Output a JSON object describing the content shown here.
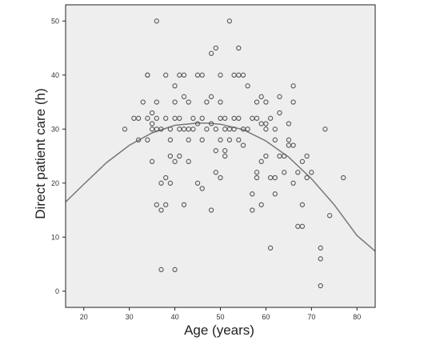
{
  "chart_data": {
    "type": "scatter",
    "title": "",
    "xlabel": "Age (years)",
    "ylabel": "Direct patient care (h)",
    "xlim": [
      16,
      84
    ],
    "ylim": [
      -3,
      53
    ],
    "x_ticks": [
      20,
      30,
      40,
      50,
      60,
      70,
      80
    ],
    "y_ticks": [
      0,
      10,
      20,
      30,
      40,
      50
    ],
    "grid": false,
    "legend": "none",
    "colors": {
      "plot_background": "#eeeeee",
      "marker_stroke": "#555555",
      "fit_line": "#777777",
      "axis": "#222222"
    },
    "fit_curve": {
      "type": "quadratic",
      "x": [
        16,
        20,
        25,
        30,
        35,
        40,
        45,
        47,
        50,
        55,
        60,
        65,
        70,
        75,
        80,
        84
      ],
      "y": [
        16.5,
        19.8,
        23.8,
        27.0,
        29.3,
        30.7,
        31.1,
        31.1,
        30.9,
        29.9,
        27.8,
        24.8,
        20.8,
        16.0,
        10.3,
        7.4
      ]
    },
    "points": [
      [
        29,
        30
      ],
      [
        31,
        32
      ],
      [
        32,
        28
      ],
      [
        32,
        32
      ],
      [
        33,
        35
      ],
      [
        34,
        40
      ],
      [
        34,
        40
      ],
      [
        34,
        32
      ],
      [
        34,
        28
      ],
      [
        35,
        33
      ],
      [
        35,
        31
      ],
      [
        35,
        30
      ],
      [
        35,
        24
      ],
      [
        36,
        50
      ],
      [
        36,
        16
      ],
      [
        36,
        30
      ],
      [
        36,
        35
      ],
      [
        36,
        32
      ],
      [
        37,
        15
      ],
      [
        37,
        4
      ],
      [
        37,
        30
      ],
      [
        37,
        20
      ],
      [
        38,
        16
      ],
      [
        38,
        21
      ],
      [
        38,
        40
      ],
      [
        38,
        32
      ],
      [
        39,
        20
      ],
      [
        39,
        25
      ],
      [
        39,
        30
      ],
      [
        39,
        28
      ],
      [
        40,
        4
      ],
      [
        40,
        38
      ],
      [
        40,
        35
      ],
      [
        40,
        32
      ],
      [
        40,
        24
      ],
      [
        41,
        30
      ],
      [
        41,
        40
      ],
      [
        41,
        32
      ],
      [
        41,
        25
      ],
      [
        42,
        40
      ],
      [
        42,
        36
      ],
      [
        42,
        30
      ],
      [
        42,
        16
      ],
      [
        43,
        35
      ],
      [
        43,
        24
      ],
      [
        43,
        30
      ],
      [
        43,
        28
      ],
      [
        44,
        32
      ],
      [
        44,
        30
      ],
      [
        45,
        20
      ],
      [
        45,
        40
      ],
      [
        45,
        31
      ],
      [
        46,
        19
      ],
      [
        46,
        40
      ],
      [
        46,
        32
      ],
      [
        46,
        28
      ],
      [
        47,
        35
      ],
      [
        47,
        30
      ],
      [
        48,
        44
      ],
      [
        48,
        15
      ],
      [
        48,
        36
      ],
      [
        48,
        31
      ],
      [
        49,
        22
      ],
      [
        49,
        30
      ],
      [
        49,
        45
      ],
      [
        49,
        26
      ],
      [
        50,
        21
      ],
      [
        50,
        40
      ],
      [
        50,
        35
      ],
      [
        50,
        32
      ],
      [
        50,
        28
      ],
      [
        51,
        26
      ],
      [
        51,
        25
      ],
      [
        51,
        30
      ],
      [
        51,
        32
      ],
      [
        52,
        50
      ],
      [
        52,
        30
      ],
      [
        52,
        28
      ],
      [
        53,
        40
      ],
      [
        53,
        32
      ],
      [
        53,
        30
      ],
      [
        54,
        45
      ],
      [
        54,
        40
      ],
      [
        54,
        32
      ],
      [
        54,
        28
      ],
      [
        55,
        40
      ],
      [
        55,
        30
      ],
      [
        55,
        27
      ],
      [
        56,
        38
      ],
      [
        56,
        30
      ],
      [
        57,
        18
      ],
      [
        57,
        15
      ],
      [
        57,
        32
      ],
      [
        58,
        22
      ],
      [
        58,
        21
      ],
      [
        58,
        35
      ],
      [
        58,
        32
      ],
      [
        59,
        36
      ],
      [
        59,
        31
      ],
      [
        59,
        24
      ],
      [
        59,
        16
      ],
      [
        60,
        35
      ],
      [
        60,
        31
      ],
      [
        60,
        30
      ],
      [
        60,
        25
      ],
      [
        61,
        21
      ],
      [
        61,
        8
      ],
      [
        61,
        32
      ],
      [
        62,
        30
      ],
      [
        62,
        18
      ],
      [
        62,
        21
      ],
      [
        62,
        28
      ],
      [
        63,
        36
      ],
      [
        63,
        33
      ],
      [
        63,
        25
      ],
      [
        64,
        25
      ],
      [
        64,
        22
      ],
      [
        65,
        28
      ],
      [
        65,
        27
      ],
      [
        65,
        31
      ],
      [
        66,
        38
      ],
      [
        66,
        35
      ],
      [
        66,
        27
      ],
      [
        66,
        20
      ],
      [
        67,
        22
      ],
      [
        67,
        12
      ],
      [
        68,
        12
      ],
      [
        68,
        16
      ],
      [
        68,
        24
      ],
      [
        69,
        21
      ],
      [
        69,
        25
      ],
      [
        70,
        22
      ],
      [
        72,
        8
      ],
      [
        72,
        6
      ],
      [
        72,
        1
      ],
      [
        73,
        30
      ],
      [
        74,
        14
      ],
      [
        77,
        21
      ]
    ]
  }
}
